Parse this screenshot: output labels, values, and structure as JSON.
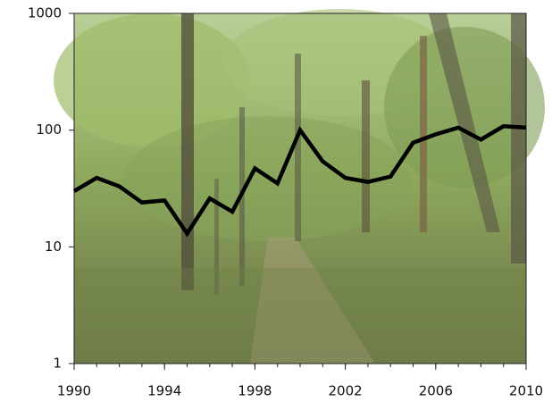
{
  "chart_data": {
    "type": "line",
    "x": [
      1990,
      1991,
      1992,
      1993,
      1994,
      1995,
      1996,
      1997,
      1998,
      1999,
      2000,
      2001,
      2002,
      2003,
      2004,
      2005,
      2006,
      2007,
      2008,
      2009,
      2010
    ],
    "series": [
      {
        "color": "#000000",
        "values": [
          30,
          39,
          33,
          24,
          25,
          13,
          26,
          20,
          47,
          35,
          100,
          54,
          39,
          36,
          40,
          78,
          92,
          105,
          83,
          108,
          105
        ]
      }
    ],
    "xlim": [
      1990,
      2010
    ],
    "xticks": [
      1990,
      1994,
      1998,
      2002,
      2006,
      2010
    ],
    "ylim": [
      1,
      1000
    ],
    "yticks": [
      1,
      10,
      100,
      1000
    ],
    "yscale": "log"
  }
}
